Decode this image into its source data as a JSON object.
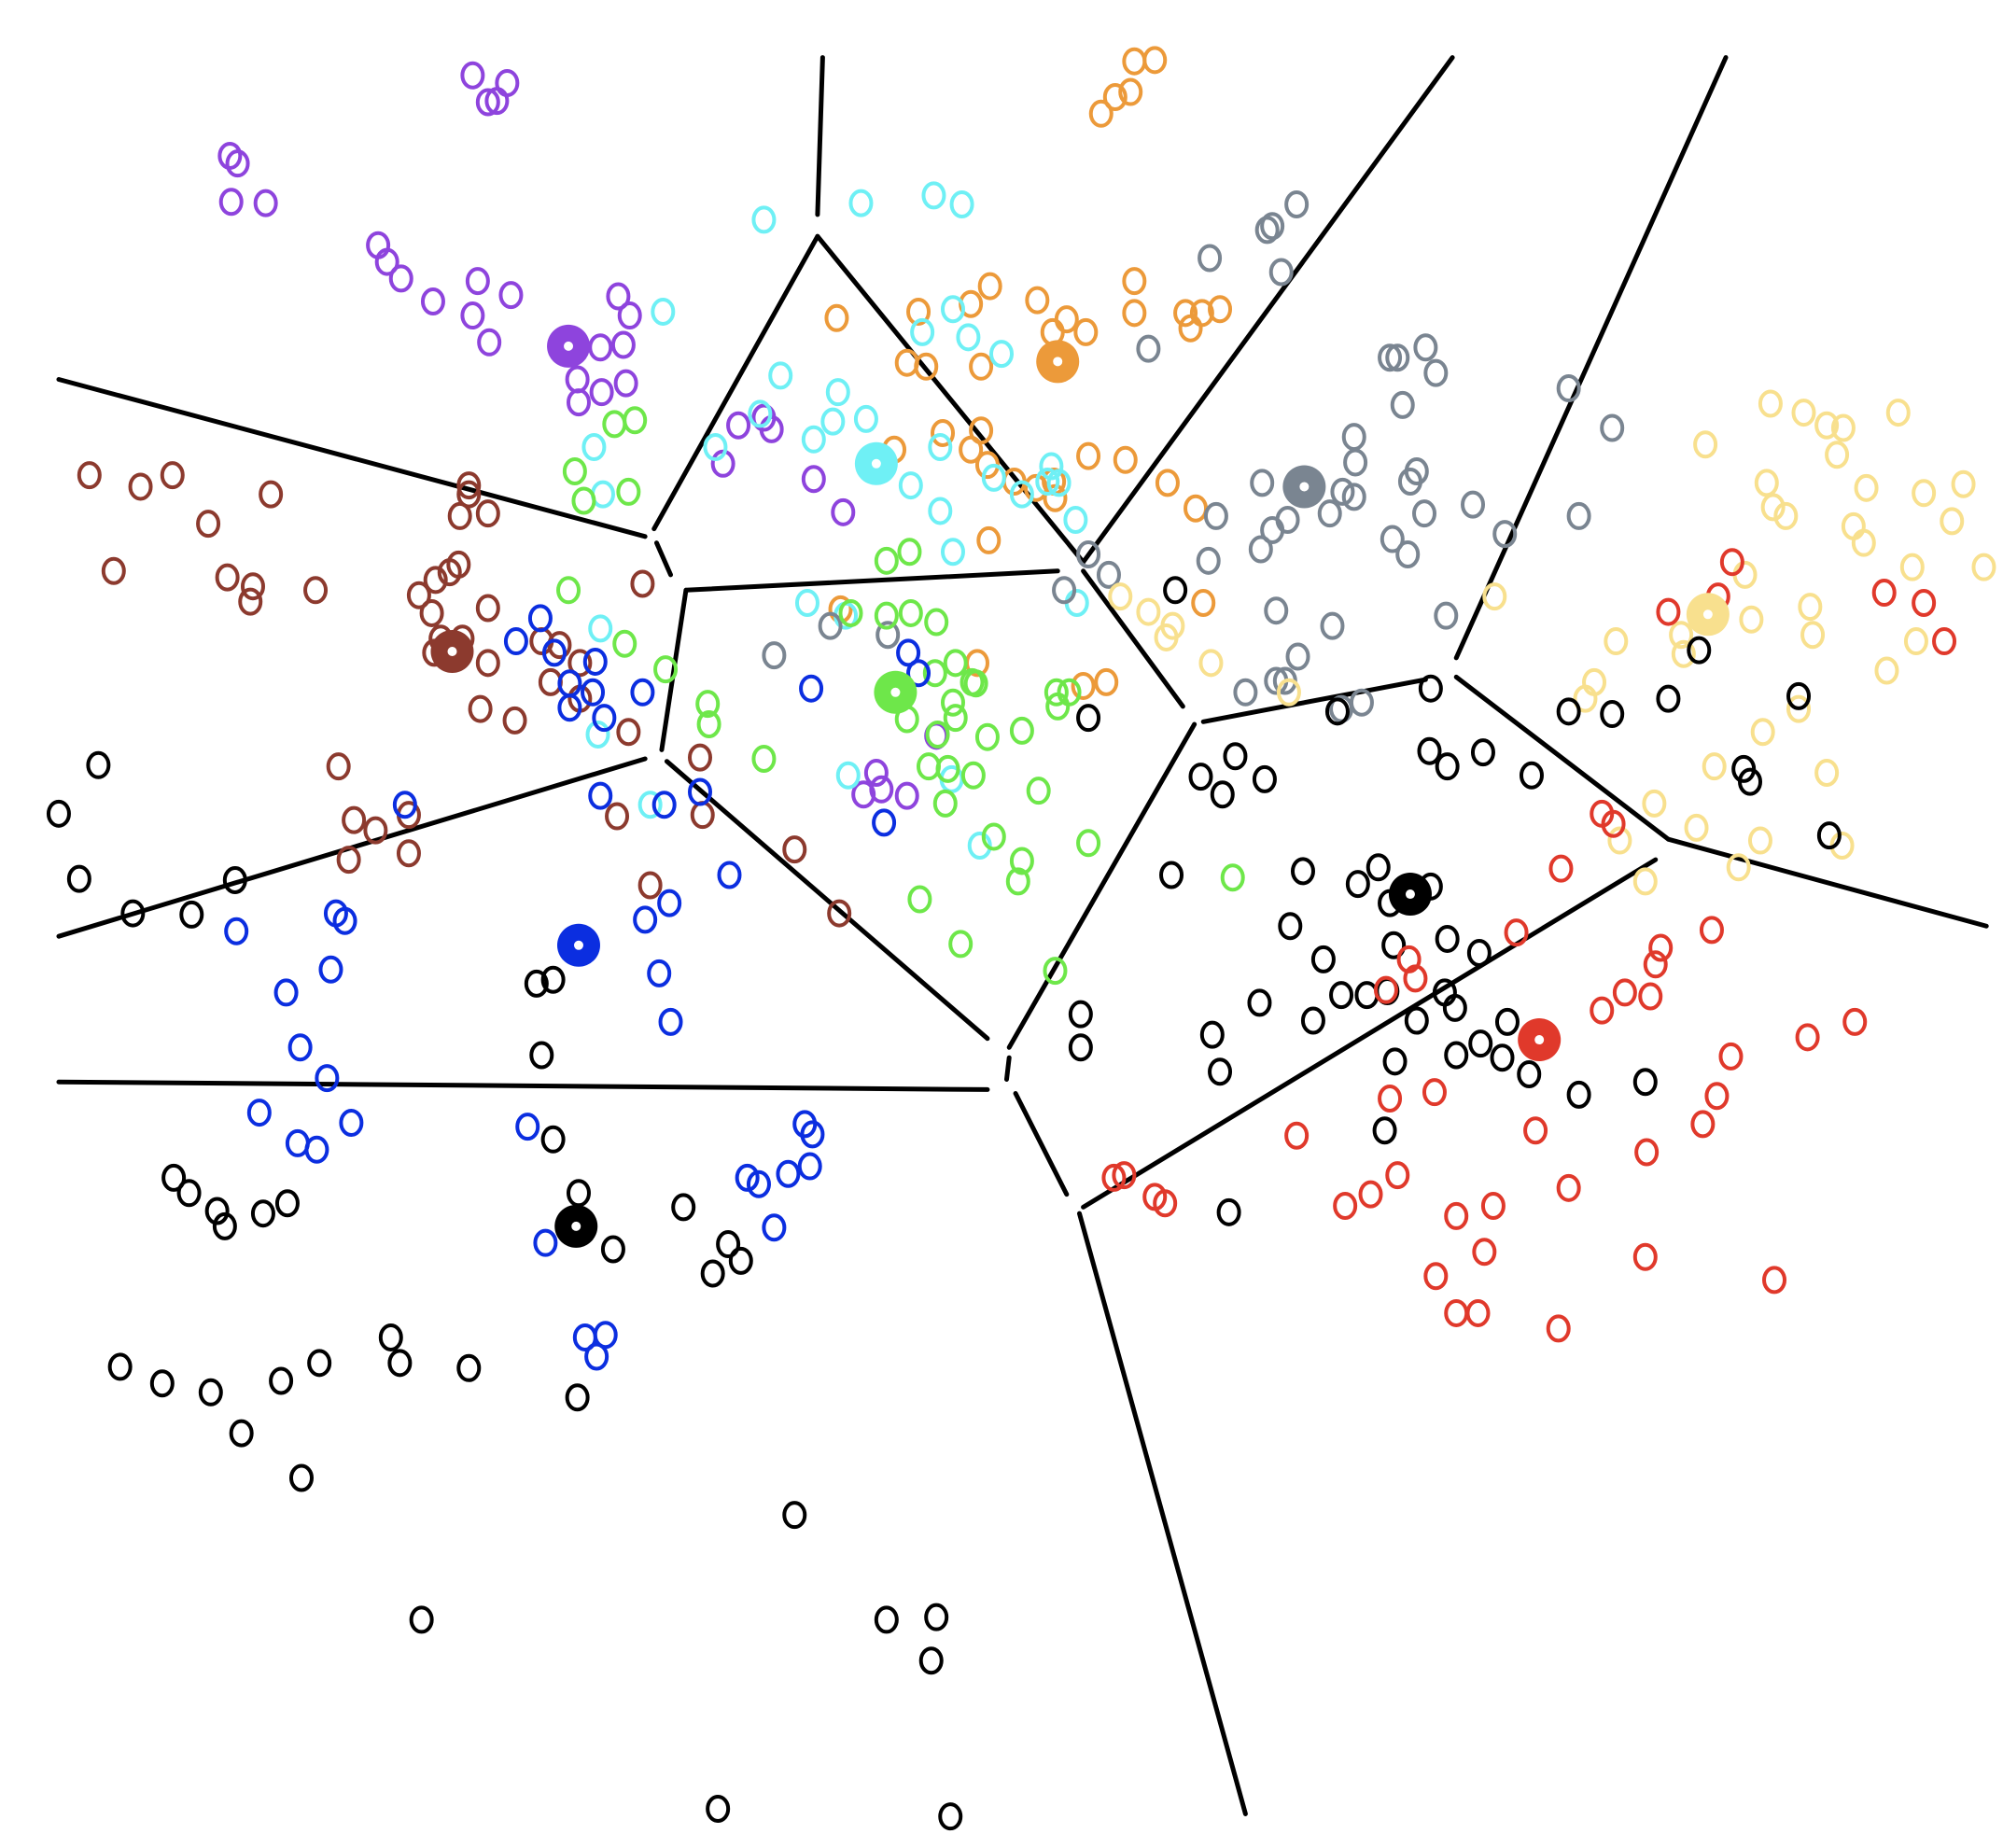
{
  "diagram": {
    "type": "voronoi-clustering",
    "point_glyph": "o",
    "colors": {
      "purple": "#8e44dd",
      "orange": "#ec9a3a",
      "cyan": "#6ff0f5",
      "gray": "#7a8591",
      "yellow": "#f8e08e",
      "brown": "#8c3a2e",
      "green": "#6ee74a",
      "blue": "#0b2ee0",
      "black": "#000000",
      "red": "#e0392b"
    },
    "centroids": [
      "purple",
      "orange",
      "cyan",
      "gray",
      "yellow",
      "brown",
      "green",
      "blue",
      "black",
      "black",
      "red"
    ]
  }
}
